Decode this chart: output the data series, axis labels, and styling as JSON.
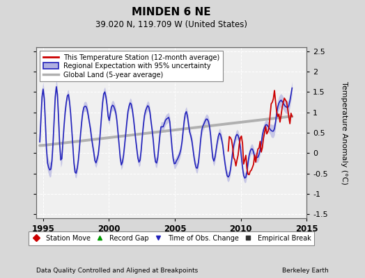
{
  "title": "MINDEN 6 NE",
  "subtitle": "39.020 N, 119.709 W (United States)",
  "ylabel": "Temperature Anomaly (°C)",
  "xlabel_left": "Data Quality Controlled and Aligned at Breakpoints",
  "xlabel_right": "Berkeley Earth",
  "xlim": [
    1994.5,
    2015.0
  ],
  "ylim": [
    -1.6,
    2.6
  ],
  "yticks": [
    -1.5,
    -1.0,
    -0.5,
    0.0,
    0.5,
    1.0,
    1.5,
    2.0,
    2.5
  ],
  "xticks": [
    1995,
    2000,
    2005,
    2010,
    2015
  ],
  "bg_color": "#d8d8d8",
  "plot_bg_color": "#f0f0f0",
  "regional_color": "#2222bb",
  "regional_fill_color": "#b0b0e0",
  "station_color": "#cc0000",
  "global_color": "#b0b0b0",
  "legend1_labels": [
    "This Temperature Station (12-month average)",
    "Regional Expectation with 95% uncertainty",
    "Global Land (5-year average)"
  ],
  "legend2_labels": [
    "Station Move",
    "Record Gap",
    "Time of Obs. Change",
    "Empirical Break"
  ],
  "legend2_colors": [
    "#cc0000",
    "#009900",
    "#2222bb",
    "#333333"
  ],
  "legend2_markers": [
    "D",
    "^",
    "v",
    "s"
  ],
  "figsize": [
    5.24,
    4.0
  ],
  "dpi": 100
}
